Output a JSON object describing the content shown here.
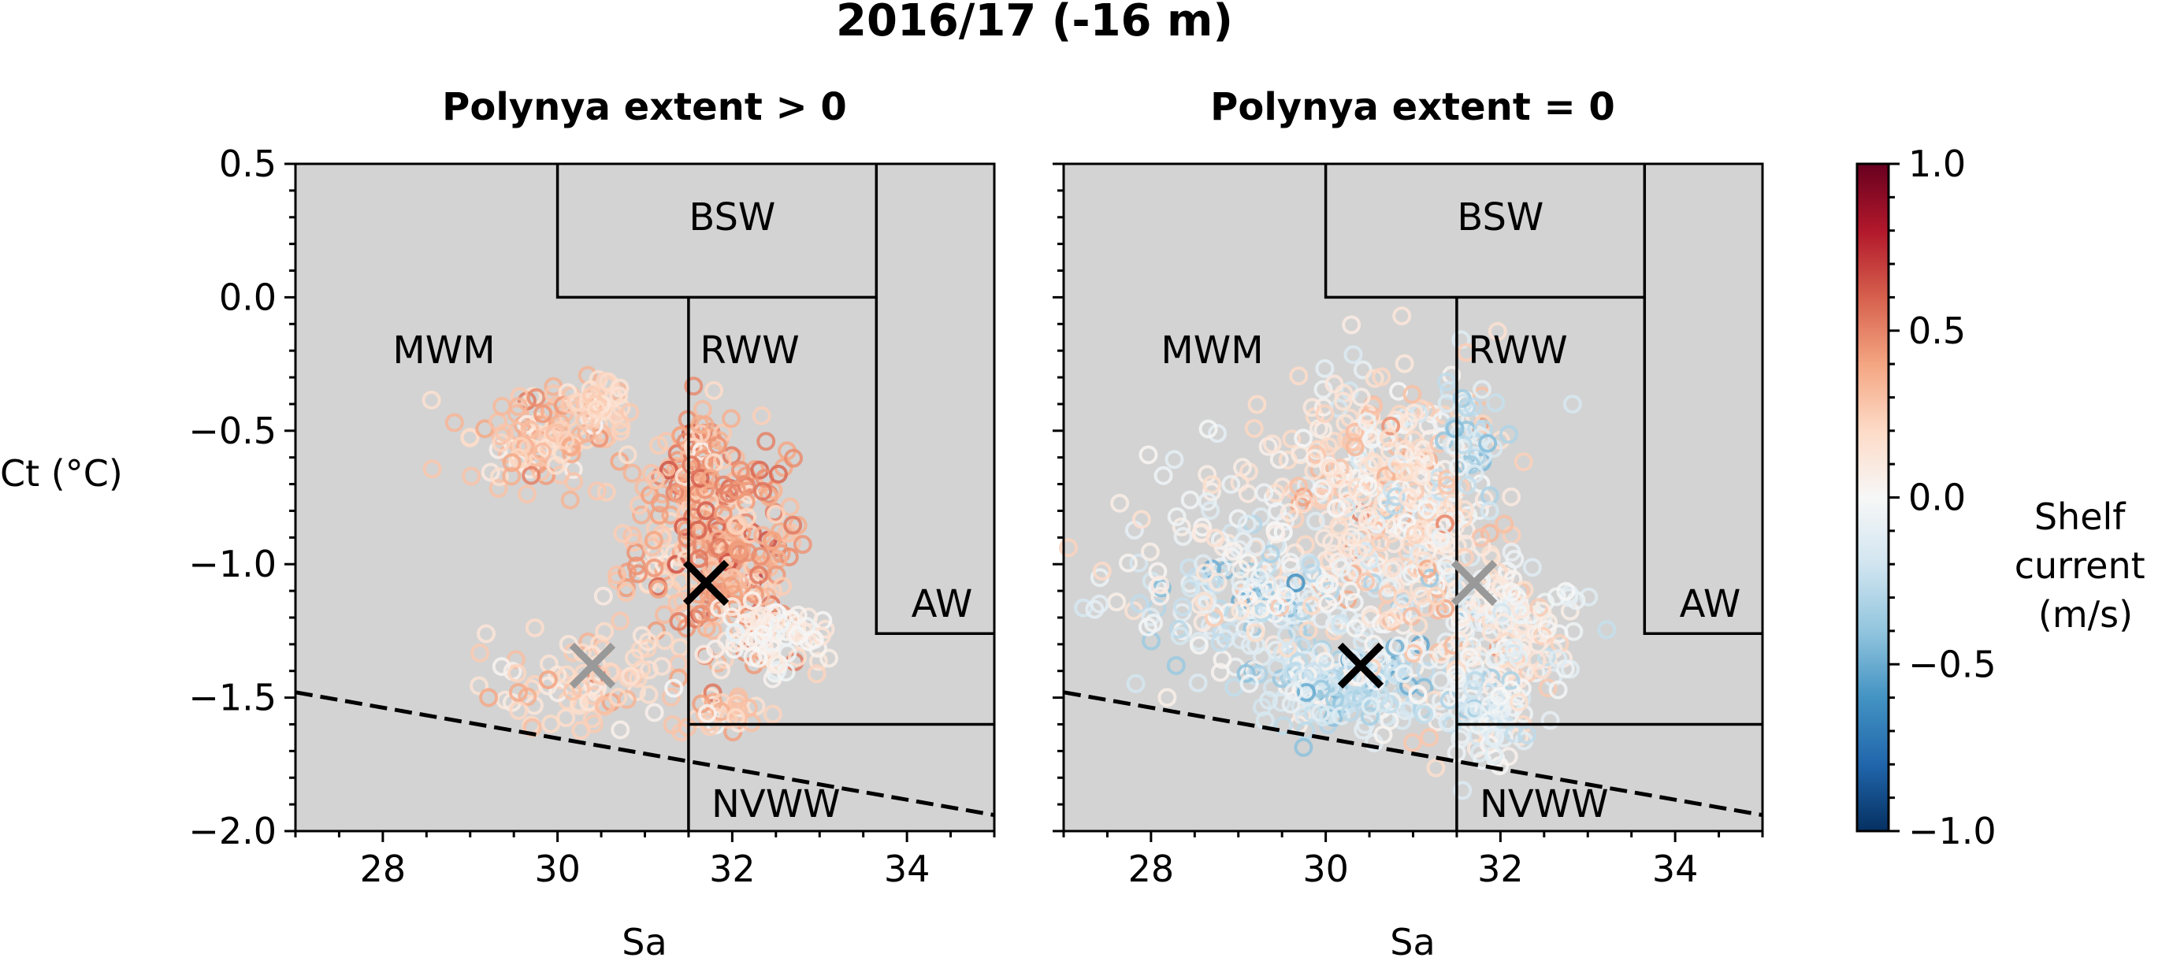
{
  "figure": {
    "suptitle": "2016/17 (-16 m)"
  },
  "chart_data": [
    {
      "type": "scatter",
      "title": "Polynya extent > 0",
      "xlabel": "Sa",
      "ylabel": "Ct (°C)",
      "xlim": [
        27.0,
        35.0
      ],
      "ylim": [
        -2.0,
        0.5
      ],
      "xticks": [
        28,
        30,
        32,
        34
      ],
      "yticks": [
        0.5,
        0.0,
        -0.5,
        -1.0,
        -1.5,
        -2.0
      ],
      "xtick_labels": [
        "28",
        "30",
        "32",
        "34"
      ],
      "ytick_labels": [
        "0.5",
        "0.0",
        "−0.5",
        "−1.0",
        "−1.5",
        "−2.0"
      ],
      "grid": false,
      "background": "#d3d3d3",
      "regions": [
        {
          "label": "BSW",
          "label_at": [
            32.0,
            0.3
          ]
        },
        {
          "label": "MWM",
          "label_at": [
            28.7,
            -0.2
          ]
        },
        {
          "label": "RWW",
          "label_at": [
            32.2,
            -0.2
          ]
        },
        {
          "label": "AW",
          "label_at": [
            34.4,
            -1.15
          ]
        },
        {
          "label": "NVWW",
          "label_at": [
            32.5,
            -1.9
          ]
        }
      ],
      "boundary_lines": [
        [
          [
            30.0,
            0.5
          ],
          [
            30.0,
            0.0
          ],
          [
            33.65,
            0.0
          ],
          [
            33.65,
            0.5
          ]
        ],
        [
          [
            31.5,
            0.0
          ],
          [
            31.5,
            -2.0
          ]
        ],
        [
          [
            33.65,
            0.0
          ],
          [
            33.65,
            -1.26
          ],
          [
            35.0,
            -1.26
          ]
        ],
        [
          [
            31.5,
            -1.6
          ],
          [
            35.0,
            -1.6
          ]
        ]
      ],
      "freezing_line": [
        [
          27.0,
          -1.48
        ],
        [
          35.0,
          -1.94
        ]
      ],
      "markers": [
        {
          "x": 31.7,
          "y": -1.07,
          "color": "#000000"
        },
        {
          "x": 30.4,
          "y": -1.38,
          "color": "#999999"
        }
      ],
      "point_clusters": [
        {
          "x": 29.8,
          "y": -0.52,
          "sx": 0.38,
          "sy": 0.1,
          "n": 110,
          "vmean": 0.28,
          "vsd": 0.1
        },
        {
          "x": 30.5,
          "y": -0.42,
          "sx": 0.2,
          "sy": 0.05,
          "n": 40,
          "vmean": 0.2,
          "vsd": 0.08
        },
        {
          "x": 31.2,
          "y": -0.95,
          "sx": 0.3,
          "sy": 0.2,
          "n": 70,
          "vmean": 0.28,
          "vsd": 0.1
        },
        {
          "x": 30.3,
          "y": -1.45,
          "sx": 0.55,
          "sy": 0.09,
          "n": 80,
          "vmean": 0.2,
          "vsd": 0.1
        },
        {
          "x": 31.6,
          "y": -0.65,
          "sx": 0.15,
          "sy": 0.12,
          "n": 60,
          "vmean": 0.38,
          "vsd": 0.1
        },
        {
          "x": 32.05,
          "y": -0.95,
          "sx": 0.35,
          "sy": 0.2,
          "n": 220,
          "vmean": 0.4,
          "vsd": 0.12
        },
        {
          "x": 32.45,
          "y": -1.28,
          "sx": 0.3,
          "sy": 0.06,
          "n": 80,
          "vmean": 0.05,
          "vsd": 0.08
        },
        {
          "x": 31.9,
          "y": -1.55,
          "sx": 0.25,
          "sy": 0.04,
          "n": 30,
          "vmean": 0.28,
          "vsd": 0.1
        }
      ]
    },
    {
      "type": "scatter",
      "title": "Polynya extent = 0",
      "xlabel": "Sa",
      "xlim": [
        27.0,
        35.0
      ],
      "ylim": [
        -2.0,
        0.5
      ],
      "xticks": [
        28,
        30,
        32,
        34
      ],
      "xtick_labels": [
        "28",
        "30",
        "32",
        "34"
      ],
      "grid": false,
      "background": "#d3d3d3",
      "regions": [
        {
          "label": "BSW",
          "label_at": [
            32.0,
            0.3
          ]
        },
        {
          "label": "MWM",
          "label_at": [
            28.7,
            -0.2
          ]
        },
        {
          "label": "RWW",
          "label_at": [
            32.2,
            -0.2
          ]
        },
        {
          "label": "AW",
          "label_at": [
            34.4,
            -1.15
          ]
        },
        {
          "label": "NVWW",
          "label_at": [
            32.5,
            -1.9
          ]
        }
      ],
      "boundary_lines": [
        [
          [
            30.0,
            0.5
          ],
          [
            30.0,
            0.0
          ],
          [
            33.65,
            0.0
          ],
          [
            33.65,
            0.5
          ]
        ],
        [
          [
            31.5,
            0.0
          ],
          [
            31.5,
            -2.0
          ]
        ],
        [
          [
            33.65,
            0.0
          ],
          [
            33.65,
            -1.26
          ],
          [
            35.0,
            -1.26
          ]
        ],
        [
          [
            31.5,
            -1.6
          ],
          [
            35.0,
            -1.6
          ]
        ]
      ],
      "freezing_line": [
        [
          27.0,
          -1.48
        ],
        [
          35.0,
          -1.94
        ]
      ],
      "markers": [
        {
          "x": 31.7,
          "y": -1.07,
          "color": "#999999"
        },
        {
          "x": 30.4,
          "y": -1.38,
          "color": "#000000"
        }
      ],
      "point_clusters": [
        {
          "x": 30.5,
          "y": -0.7,
          "sx": 0.55,
          "sy": 0.25,
          "n": 300,
          "vmean": 0.12,
          "vsd": 0.15
        },
        {
          "x": 29.4,
          "y": -1.15,
          "sx": 0.8,
          "sy": 0.15,
          "n": 200,
          "vmean": -0.1,
          "vsd": 0.15
        },
        {
          "x": 30.2,
          "y": -1.45,
          "sx": 0.5,
          "sy": 0.08,
          "n": 180,
          "vmean": -0.2,
          "vsd": 0.15
        },
        {
          "x": 31.3,
          "y": -1.0,
          "sx": 0.45,
          "sy": 0.3,
          "n": 200,
          "vmean": 0.08,
          "vsd": 0.15
        },
        {
          "x": 32.3,
          "y": -1.25,
          "sx": 0.4,
          "sy": 0.12,
          "n": 100,
          "vmean": 0.02,
          "vsd": 0.12
        },
        {
          "x": 31.8,
          "y": -1.55,
          "sx": 0.3,
          "sy": 0.08,
          "n": 80,
          "vmean": -0.1,
          "vsd": 0.12
        },
        {
          "x": 31.7,
          "y": -0.55,
          "sx": 0.15,
          "sy": 0.1,
          "n": 40,
          "vmean": -0.2,
          "vsd": 0.12
        },
        {
          "x": 29.0,
          "y": -0.9,
          "sx": 0.5,
          "sy": 0.2,
          "n": 60,
          "vmean": 0.0,
          "vsd": 0.1
        }
      ]
    }
  ],
  "colorbar": {
    "label_lines": [
      "Shelf",
      "current",
      "(m/s)"
    ],
    "vmin": -1.0,
    "vmax": 1.0,
    "ticks": [
      1.0,
      0.5,
      0.0,
      -0.5,
      -1.0
    ],
    "tick_labels": [
      "1.0",
      "0.5",
      "0.0",
      "−0.5",
      "−1.0"
    ],
    "colormap": [
      "#053061",
      "#2166ac",
      "#4393c3",
      "#92c5de",
      "#d1e5f0",
      "#f7f7f7",
      "#fddbc7",
      "#f4a582",
      "#d6604d",
      "#b2182b",
      "#67001f"
    ]
  }
}
